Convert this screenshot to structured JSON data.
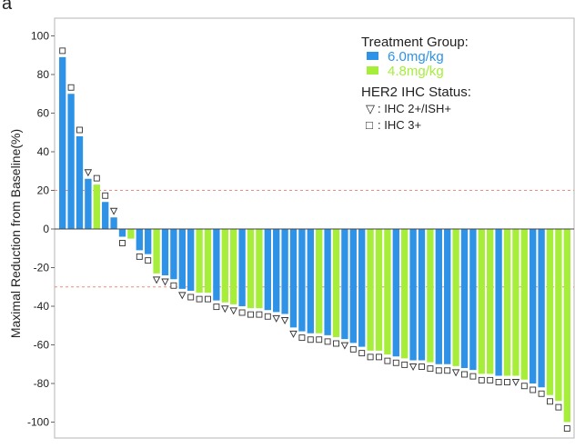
{
  "panel_label": "a",
  "chart_data": {
    "type": "bar",
    "ylabel": "Maximal Reduction from Baseline(%)",
    "xlabel": "",
    "ylim": [
      -105,
      105
    ],
    "yticks": [
      100,
      80,
      60,
      40,
      20,
      0,
      -20,
      -40,
      -60,
      -80,
      -100
    ],
    "reference_lines": [
      20,
      -30
    ],
    "grid": false,
    "legend": {
      "group_title": "Treatment Group:",
      "groups": [
        {
          "label": "6.0mg/kg",
          "color": "#2e93e6"
        },
        {
          "label": "4.8mg/kg",
          "color": "#a6ee3a"
        }
      ],
      "marker_title": "HER2 IHC Status:",
      "markers": [
        {
          "symbol": "▽",
          "label": ": IHC 2+/ISH+"
        },
        {
          "symbol": "□",
          "label": ": IHC 3+"
        }
      ],
      "placement": "top-right"
    },
    "bars": [
      {
        "value": 89,
        "group": "6.0mg/kg",
        "her2": "IHC 3+"
      },
      {
        "value": 70,
        "group": "6.0mg/kg",
        "her2": "IHC 3+"
      },
      {
        "value": 48,
        "group": "6.0mg/kg",
        "her2": "IHC 3+"
      },
      {
        "value": 26,
        "group": "6.0mg/kg",
        "her2": "IHC 2+/ISH+"
      },
      {
        "value": 23,
        "group": "4.8mg/kg",
        "her2": "IHC 3+"
      },
      {
        "value": 14,
        "group": "6.0mg/kg",
        "her2": "IHC 3+"
      },
      {
        "value": 6,
        "group": "6.0mg/kg",
        "her2": "IHC 2+/ISH+"
      },
      {
        "value": -4,
        "group": "6.0mg/kg",
        "her2": "IHC 3+"
      },
      {
        "value": -5,
        "group": "4.8mg/kg",
        "her2": ""
      },
      {
        "value": -11,
        "group": "6.0mg/kg",
        "her2": "IHC 3+"
      },
      {
        "value": -13,
        "group": "6.0mg/kg",
        "her2": "IHC 3+"
      },
      {
        "value": -23,
        "group": "4.8mg/kg",
        "her2": "IHC 2+/ISH+"
      },
      {
        "value": -24,
        "group": "6.0mg/kg",
        "her2": "IHC 2+/ISH+"
      },
      {
        "value": -26,
        "group": "6.0mg/kg",
        "her2": "IHC 3+"
      },
      {
        "value": -31,
        "group": "6.0mg/kg",
        "her2": "IHC 2+/ISH+"
      },
      {
        "value": -32,
        "group": "6.0mg/kg",
        "her2": "IHC 3+"
      },
      {
        "value": -33,
        "group": "4.8mg/kg",
        "her2": "IHC 3+"
      },
      {
        "value": -33,
        "group": "4.8mg/kg",
        "her2": "IHC 3+"
      },
      {
        "value": -37,
        "group": "6.0mg/kg",
        "her2": "IHC 3+"
      },
      {
        "value": -38,
        "group": "4.8mg/kg",
        "her2": "IHC 2+/ISH+"
      },
      {
        "value": -39,
        "group": "4.8mg/kg",
        "her2": "IHC 2+/ISH+"
      },
      {
        "value": -40,
        "group": "6.0mg/kg",
        "her2": "IHC 3+"
      },
      {
        "value": -41,
        "group": "4.8mg/kg",
        "her2": "IHC 3+"
      },
      {
        "value": -41,
        "group": "4.8mg/kg",
        "her2": "IHC 3+"
      },
      {
        "value": -42,
        "group": "6.0mg/kg",
        "her2": "IHC 3+"
      },
      {
        "value": -43,
        "group": "6.0mg/kg",
        "her2": "IHC 2+/ISH+"
      },
      {
        "value": -44,
        "group": "6.0mg/kg",
        "her2": "IHC 2+/ISH+"
      },
      {
        "value": -51,
        "group": "6.0mg/kg",
        "her2": "IHC 2+/ISH+"
      },
      {
        "value": -53,
        "group": "6.0mg/kg",
        "her2": "IHC 3+"
      },
      {
        "value": -54,
        "group": "6.0mg/kg",
        "her2": "IHC 3+"
      },
      {
        "value": -54,
        "group": "4.8mg/kg",
        "her2": "IHC 3+"
      },
      {
        "value": -55,
        "group": "6.0mg/kg",
        "her2": "IHC 3+"
      },
      {
        "value": -56,
        "group": "4.8mg/kg",
        "her2": "IHC 3+"
      },
      {
        "value": -57,
        "group": "6.0mg/kg",
        "her2": "IHC 2+/ISH+"
      },
      {
        "value": -59,
        "group": "6.0mg/kg",
        "her2": "IHC 3+"
      },
      {
        "value": -61,
        "group": "6.0mg/kg",
        "her2": "IHC 3+"
      },
      {
        "value": -63,
        "group": "4.8mg/kg",
        "her2": "IHC 3+"
      },
      {
        "value": -63,
        "group": "4.8mg/kg",
        "her2": "IHC 3+"
      },
      {
        "value": -65,
        "group": "4.8mg/kg",
        "her2": "IHC 3+"
      },
      {
        "value": -66,
        "group": "6.0mg/kg",
        "her2": "IHC 3+"
      },
      {
        "value": -67,
        "group": "4.8mg/kg",
        "her2": "IHC 3+"
      },
      {
        "value": -68,
        "group": "6.0mg/kg",
        "her2": "IHC 2+/ISH+"
      },
      {
        "value": -68,
        "group": "6.0mg/kg",
        "her2": "IHC 3+"
      },
      {
        "value": -69,
        "group": "4.8mg/kg",
        "her2": "IHC 3+"
      },
      {
        "value": -70,
        "group": "6.0mg/kg",
        "her2": "IHC 3+"
      },
      {
        "value": -70,
        "group": "6.0mg/kg",
        "her2": "IHC 3+"
      },
      {
        "value": -71,
        "group": "4.8mg/kg",
        "her2": "IHC 2+/ISH+"
      },
      {
        "value": -72,
        "group": "6.0mg/kg",
        "her2": "IHC 3+"
      },
      {
        "value": -73,
        "group": "6.0mg/kg",
        "her2": "IHC 3+"
      },
      {
        "value": -75,
        "group": "4.8mg/kg",
        "her2": "IHC 3+"
      },
      {
        "value": -75,
        "group": "4.8mg/kg",
        "her2": "IHC 3+"
      },
      {
        "value": -76,
        "group": "6.0mg/kg",
        "her2": "IHC 3+"
      },
      {
        "value": -76,
        "group": "4.8mg/kg",
        "her2": "IHC 3+"
      },
      {
        "value": -76,
        "group": "4.8mg/kg",
        "her2": "IHC 2+/ISH+"
      },
      {
        "value": -78,
        "group": "4.8mg/kg",
        "her2": "IHC 3+"
      },
      {
        "value": -80,
        "group": "6.0mg/kg",
        "her2": "IHC 3+"
      },
      {
        "value": -82,
        "group": "6.0mg/kg",
        "her2": "IHC 3+"
      },
      {
        "value": -86,
        "group": "4.8mg/kg",
        "her2": "IHC 3+"
      },
      {
        "value": -89,
        "group": "4.8mg/kg",
        "her2": "IHC 3+"
      },
      {
        "value": -100,
        "group": "4.8mg/kg",
        "her2": "IHC 3+"
      }
    ]
  }
}
